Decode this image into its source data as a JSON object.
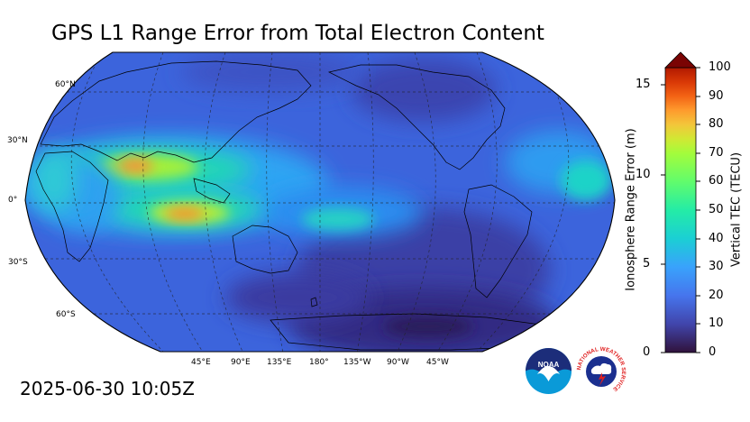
{
  "title": "GPS L1 Range Error from Total Electron Content",
  "timestamp": "2025-06-30 10:05Z",
  "map": {
    "projection": "Robinson",
    "central_longitude": 180,
    "lat_labels": [
      "60°N",
      "30°N",
      "0°",
      "30°S",
      "60°S"
    ],
    "lon_labels": [
      "45°E",
      "90°E",
      "135°E",
      "180°",
      "135°W",
      "90°W",
      "45°W"
    ],
    "gridlines": true,
    "coastlines": true
  },
  "colorbar": {
    "colormap": "turbo",
    "extend": "max",
    "left_axis_title": "Ionosphere Range Error (m)",
    "left_ticks": [
      "0",
      "5",
      "10",
      "15"
    ],
    "right_axis_title": "Vertical TEC (TECU)",
    "right_ticks": [
      "0",
      "10",
      "20",
      "30",
      "40",
      "50",
      "60",
      "70",
      "80",
      "90",
      "100"
    ],
    "tec_range": [
      0,
      100
    ],
    "range_error_range": [
      0,
      16.2
    ]
  },
  "logos": {
    "noaa": "NOAA",
    "nws": "NATIONAL WEATHER SERVICE"
  },
  "colors": {
    "low": "#30123b",
    "background_field": "#3e6fe0",
    "mid": "#1ae4b6",
    "high": "#f87a1d",
    "max": "#7a0403"
  }
}
